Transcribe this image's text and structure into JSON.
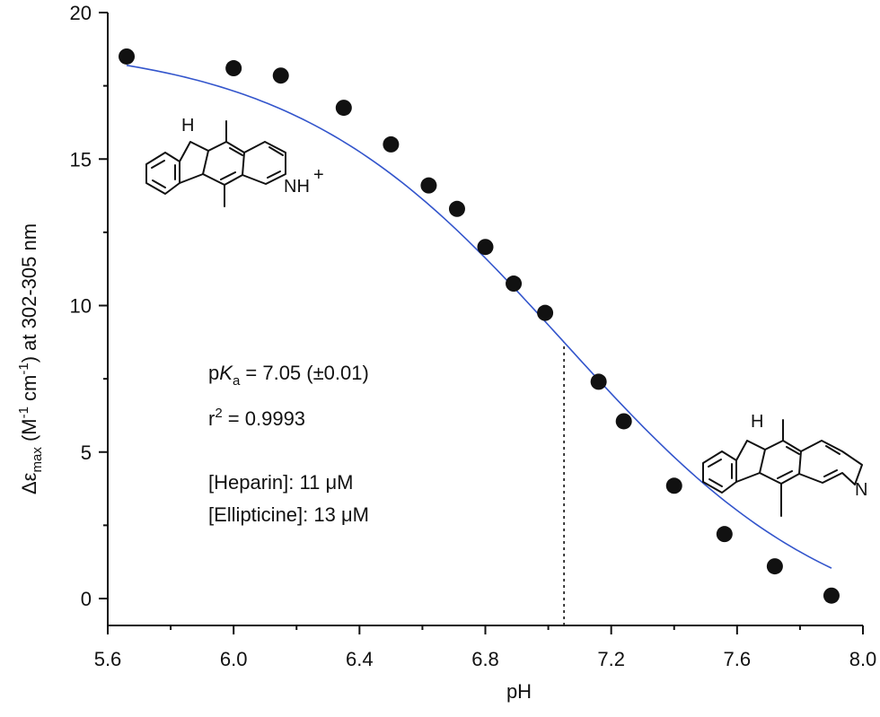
{
  "chart_data": {
    "type": "scatter",
    "xlabel": "pH",
    "ylabel": {
      "prefix": "Δε",
      "sub": "max",
      "unit_open": " (M",
      "sup1": "-1",
      "unit_mid": " cm",
      "sup2": "-1",
      "unit_close": ") at 302-305 nm"
    },
    "xlim": [
      5.6,
      8.0
    ],
    "ylim": [
      -1,
      20
    ],
    "xticks": [
      5.6,
      6.0,
      6.4,
      6.8,
      7.2,
      7.6,
      8.0
    ],
    "xtick_labels": [
      "5.6",
      "6.0",
      "6.4",
      "6.8",
      "7.2",
      "7.6",
      "8.0"
    ],
    "yticks": [
      0,
      5,
      10,
      15,
      20
    ],
    "ytick_labels": [
      "0",
      "5",
      "10",
      "15",
      "20"
    ],
    "grid": false,
    "legend": "none",
    "series": [
      {
        "marker": "filled-circle",
        "color": "#111111",
        "x": [
          5.66,
          6.0,
          6.15,
          6.35,
          6.5,
          6.62,
          6.71,
          6.8,
          6.89,
          6.99,
          7.16,
          7.24,
          7.4,
          7.56,
          7.72,
          7.9
        ],
        "y": [
          18.5,
          18.1,
          17.85,
          16.75,
          15.5,
          14.1,
          13.3,
          12.0,
          10.75,
          9.75,
          7.4,
          6.05,
          3.85,
          2.2,
          1.1,
          0.1
        ]
      }
    ],
    "fit": {
      "color": "#3355cc",
      "model": "sigmoid",
      "x_range": [
        5.66,
        7.9
      ],
      "top": 19.0,
      "bottom": -1.5,
      "pKa": 7.05
    },
    "pka_line_x": 7.05,
    "annotations": {
      "pka_p": "p",
      "pka_K": "K",
      "pka_sub": "a",
      "pka_rest": " = 7.05 (±0.01)",
      "r2_r": "r",
      "r2_sup": "2",
      "r2_rest": " = 0.9993",
      "heparin": "[Heparin]: 11 μM",
      "ellipticine": "[Ellipticine]: 13 μM"
    },
    "structure_labels": {
      "protonated_H": "H",
      "protonated_NH": "NH",
      "protonated_charge": "+",
      "neutral_H": "H",
      "neutral_N": "N"
    }
  }
}
